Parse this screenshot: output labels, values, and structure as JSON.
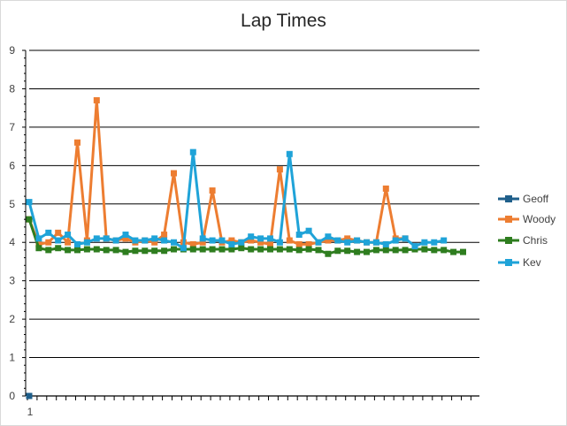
{
  "chart_data": {
    "type": "line",
    "title": "Lap Times",
    "ylim": [
      0,
      9
    ],
    "yticks": [
      "0",
      "1",
      "2",
      "3",
      "4",
      "5",
      "6",
      "7",
      "8",
      "9"
    ],
    "xtick_labels": [
      "1"
    ],
    "grid": true,
    "legend_position": "right",
    "series": [
      {
        "name": "Geoff",
        "color": "#1f5f8b",
        "values": [
          0
        ]
      },
      {
        "name": "Woody",
        "color": "#ed7d31",
        "values": [
          4.6,
          3.95,
          4.0,
          4.25,
          4.0,
          6.6,
          4.05,
          7.7,
          4.1,
          4.05,
          4.1,
          4.0,
          4.05,
          4.0,
          4.2,
          5.8,
          4.0,
          3.95,
          4.0,
          5.35,
          4.0,
          4.05,
          4.0,
          4.05,
          4.0,
          3.95,
          5.9,
          4.05,
          3.95,
          3.95,
          4.0,
          4.05,
          4.05,
          4.1,
          4.05,
          4.0,
          4.0,
          5.4,
          4.1,
          4.1
        ]
      },
      {
        "name": "Chris",
        "color": "#2e7d1f",
        "values": [
          4.6,
          3.85,
          3.8,
          3.85,
          3.8,
          3.8,
          3.82,
          3.82,
          3.8,
          3.8,
          3.75,
          3.78,
          3.78,
          3.78,
          3.78,
          3.82,
          3.82,
          3.82,
          3.82,
          3.82,
          3.82,
          3.82,
          3.85,
          3.82,
          3.82,
          3.82,
          3.82,
          3.82,
          3.8,
          3.82,
          3.8,
          3.7,
          3.78,
          3.78,
          3.75,
          3.75,
          3.8,
          3.8,
          3.8,
          3.8,
          3.82,
          3.82,
          3.8,
          3.8,
          3.75,
          3.75
        ]
      },
      {
        "name": "Kev",
        "color": "#1fa3d8",
        "values": [
          5.05,
          4.1,
          4.25,
          4.05,
          4.2,
          3.95,
          4.0,
          4.1,
          4.1,
          4.05,
          4.2,
          4.05,
          4.05,
          4.1,
          4.05,
          4.0,
          3.85,
          6.35,
          4.1,
          4.05,
          4.05,
          3.95,
          4.0,
          4.15,
          4.1,
          4.1,
          4.0,
          6.3,
          4.2,
          4.3,
          4.0,
          4.15,
          4.05,
          4.0,
          4.05,
          4.0,
          4.0,
          3.95,
          4.05,
          4.1,
          3.9,
          4.0,
          4.0,
          4.05
        ]
      }
    ]
  }
}
